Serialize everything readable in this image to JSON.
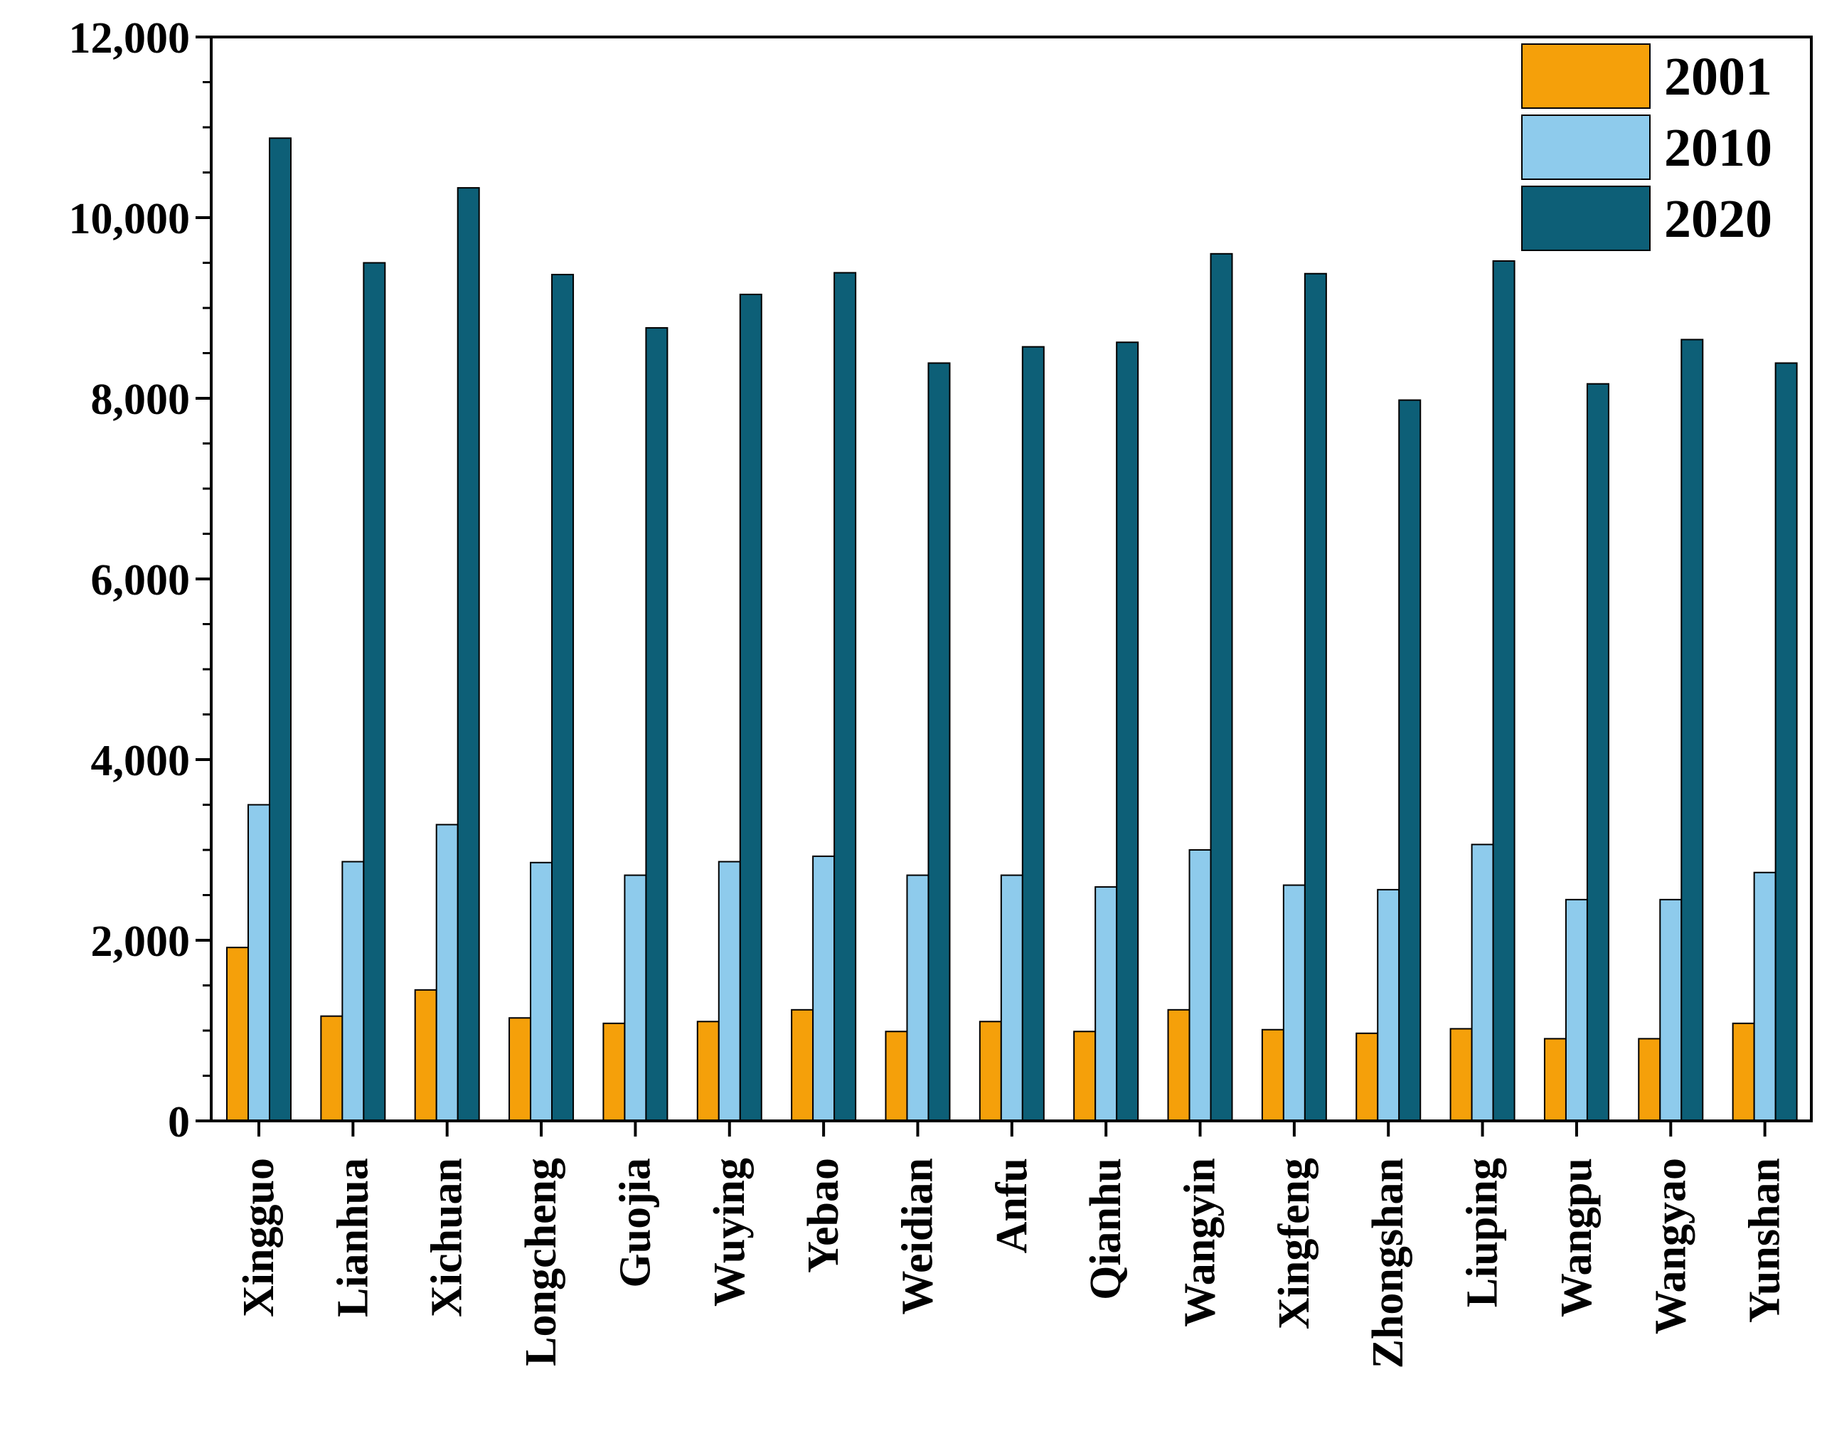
{
  "chart_data": {
    "type": "bar",
    "title": "",
    "xlabel": "",
    "ylabel": "",
    "ylim": [
      0,
      12000
    ],
    "yticks": [
      0,
      2000,
      4000,
      6000,
      8000,
      10000,
      12000
    ],
    "ytick_labels": [
      "0",
      "2,000",
      "4,000",
      "6,000",
      "8,000",
      "10,000",
      "12,000"
    ],
    "grid": false,
    "legend_position": "top-right",
    "categories": [
      "Xingguo",
      "Lianhua",
      "Xichuan",
      "Longcheng",
      "Guojia",
      "Wuying",
      "Yebao",
      "Weidian",
      "Anfu",
      "Qianhu",
      "Wangyin",
      "Xingfeng",
      "Zhongshan",
      "Liuping",
      "Wangpu",
      "Wangyao",
      "Yunshan"
    ],
    "series": [
      {
        "name": "2001",
        "color": "#f5a00a",
        "values": [
          1920,
          1160,
          1450,
          1140,
          1080,
          1100,
          1230,
          990,
          1100,
          990,
          1230,
          1010,
          970,
          1020,
          910,
          910,
          1080
        ]
      },
      {
        "name": "2010",
        "color": "#8ecbec",
        "values": [
          3500,
          2870,
          3280,
          2860,
          2720,
          2870,
          2930,
          2720,
          2720,
          2590,
          3000,
          2610,
          2560,
          3060,
          2450,
          2450,
          2750
        ]
      },
      {
        "name": "2020",
        "color": "#0d5f77",
        "values": [
          10880,
          9500,
          10330,
          9370,
          8780,
          9150,
          9390,
          8390,
          8570,
          8620,
          9600,
          9380,
          7980,
          9520,
          8160,
          8650,
          8390
        ]
      }
    ]
  }
}
